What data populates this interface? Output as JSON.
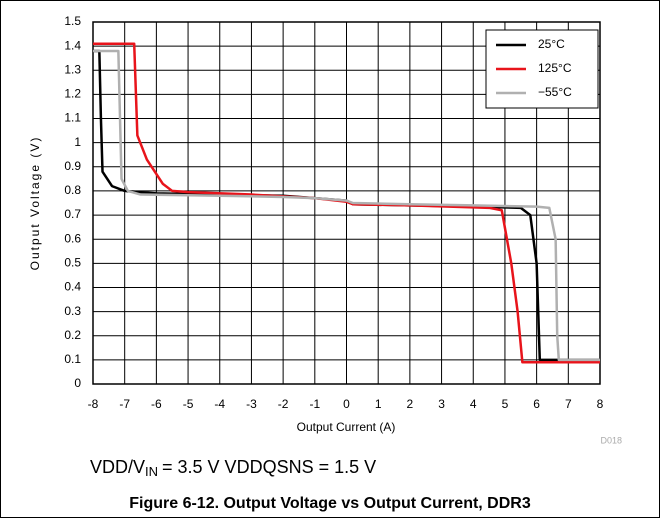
{
  "chart_data": {
    "type": "line",
    "title": "Figure 6-12. Output Voltage vs Output Current, DDR3",
    "annotation": [
      "VDD/V",
      "IN",
      "= 3.5 V   VDDQSNS = 1.5 V"
    ],
    "figure_id": "D018",
    "xlabel": "Output Current (A)",
    "ylabel": "Output Voltage (V)",
    "xlim": [
      -8,
      8
    ],
    "ylim": [
      0,
      1.5
    ],
    "xticks": [
      -8,
      -7,
      -6,
      -5,
      -4,
      -3,
      -2,
      -1,
      0,
      1,
      2,
      3,
      4,
      5,
      6,
      7,
      8
    ],
    "yticks": [
      0,
      0.1,
      0.2,
      0.3,
      0.4,
      0.5,
      0.6,
      0.7,
      0.8,
      0.9,
      1,
      1.1,
      1.2,
      1.3,
      1.4,
      1.5
    ],
    "grid": true,
    "legend": "upper right",
    "series": [
      {
        "name": "25°C",
        "color": "#000000",
        "x": [
          -8,
          -7.8,
          -7.75,
          -7.7,
          -7.4,
          -7,
          -6,
          -4,
          -2,
          -1,
          0,
          0.2,
          2,
          4,
          5.5,
          5.8,
          6.0,
          6.05,
          6.1,
          8
        ],
        "values": [
          1.38,
          1.38,
          1.1,
          0.88,
          0.82,
          0.8,
          0.79,
          0.785,
          0.78,
          0.77,
          0.76,
          0.745,
          0.74,
          0.735,
          0.73,
          0.7,
          0.5,
          0.3,
          0.1,
          0.1
        ]
      },
      {
        "name": "125°C",
        "color": "#e8141b",
        "x": [
          -8,
          -6.7,
          -6.6,
          -6.3,
          -5.8,
          -5.5,
          -5,
          -3,
          -1,
          0,
          0.2,
          2,
          4.5,
          4.9,
          5.2,
          5.4,
          5.55,
          8
        ],
        "values": [
          1.41,
          1.41,
          1.03,
          0.93,
          0.83,
          0.8,
          0.795,
          0.785,
          0.77,
          0.755,
          0.745,
          0.74,
          0.73,
          0.72,
          0.5,
          0.3,
          0.09,
          0.09
        ]
      },
      {
        "name": "−55°C",
        "color": "#b0b0b0",
        "x": [
          -8,
          -7.2,
          -7.1,
          -6.9,
          -6.5,
          -4,
          -2,
          -1,
          0,
          0.2,
          2,
          4,
          6.0,
          6.4,
          6.6,
          6.65,
          6.7,
          8
        ],
        "values": [
          1.38,
          1.38,
          0.85,
          0.8,
          0.785,
          0.78,
          0.775,
          0.77,
          0.76,
          0.75,
          0.745,
          0.74,
          0.735,
          0.73,
          0.6,
          0.2,
          0.1,
          0.1
        ]
      }
    ]
  }
}
